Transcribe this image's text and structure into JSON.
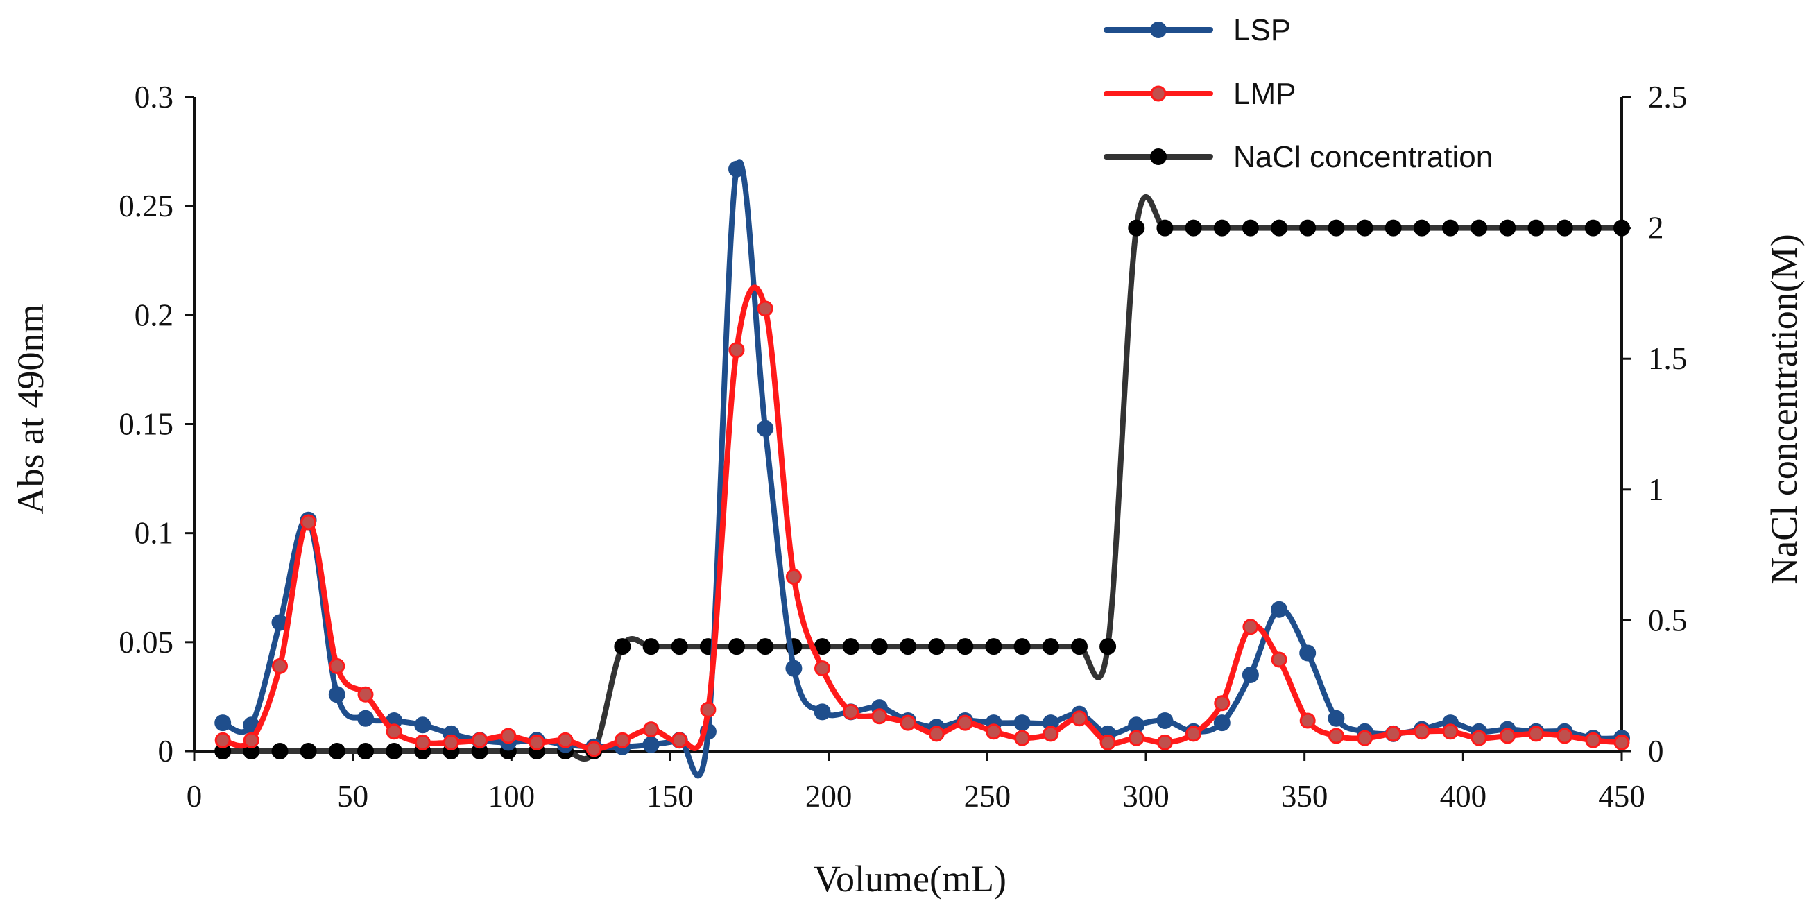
{
  "chart_data": {
    "type": "line",
    "title": "",
    "xlabel": "Volume(mL)",
    "ylabel": "Abs at 490nm",
    "y2label": "NaCl concentration(M)",
    "xlim": [
      0,
      450
    ],
    "ylim": [
      0,
      0.3
    ],
    "y2lim": [
      0,
      2.5
    ],
    "xticks": [
      "0",
      "50",
      "100",
      "150",
      "200",
      "250",
      "300",
      "350",
      "400",
      "450"
    ],
    "yticks": [
      "0",
      "0.05",
      "0.1",
      "0.15",
      "0.2",
      "0.25",
      "0.3"
    ],
    "y2ticks": [
      "0",
      "0.5",
      "1",
      "1.5",
      "2",
      "2.5"
    ],
    "grid": false,
    "legend_position": "top-right",
    "series": [
      {
        "name": "LSP",
        "axis": "left",
        "color": "#1f4e8c",
        "marker_color": "#1f4e8c",
        "points": [
          [
            9,
            0.013
          ],
          [
            18,
            0.012
          ],
          [
            27,
            0.059
          ],
          [
            36,
            0.106
          ],
          [
            45,
            0.026
          ],
          [
            54,
            0.015
          ],
          [
            63,
            0.014
          ],
          [
            72,
            0.012
          ],
          [
            81,
            0.008
          ],
          [
            90,
            0.005
          ],
          [
            99,
            0.004
          ],
          [
            108,
            0.005
          ],
          [
            117,
            0.003
          ],
          [
            126,
            0.002
          ],
          [
            135,
            0.002
          ],
          [
            144,
            0.003
          ],
          [
            153,
            0.005
          ],
          [
            162,
            0.009
          ],
          [
            171,
            0.267
          ],
          [
            180,
            0.148
          ],
          [
            189,
            0.038
          ],
          [
            198,
            0.018
          ],
          [
            207,
            0.018
          ],
          [
            216,
            0.02
          ],
          [
            225,
            0.014
          ],
          [
            234,
            0.011
          ],
          [
            243,
            0.014
          ],
          [
            252,
            0.013
          ],
          [
            261,
            0.013
          ],
          [
            270,
            0.013
          ],
          [
            279,
            0.017
          ],
          [
            288,
            0.008
          ],
          [
            297,
            0.012
          ],
          [
            306,
            0.014
          ],
          [
            315,
            0.009
          ],
          [
            324,
            0.013
          ],
          [
            333,
            0.035
          ],
          [
            342,
            0.065
          ],
          [
            351,
            0.045
          ],
          [
            360,
            0.015
          ],
          [
            369,
            0.009
          ],
          [
            378,
            0.008
          ],
          [
            387,
            0.01
          ],
          [
            396,
            0.013
          ],
          [
            405,
            0.009
          ],
          [
            414,
            0.01
          ],
          [
            423,
            0.009
          ],
          [
            432,
            0.009
          ],
          [
            441,
            0.006
          ],
          [
            450,
            0.006
          ]
        ]
      },
      {
        "name": "LMP",
        "axis": "left",
        "color": "#ff1a1a",
        "marker_color": "#c0504d",
        "points": [
          [
            9,
            0.005
          ],
          [
            18,
            0.005
          ],
          [
            27,
            0.039
          ],
          [
            36,
            0.105
          ],
          [
            45,
            0.039
          ],
          [
            54,
            0.026
          ],
          [
            63,
            0.009
          ],
          [
            72,
            0.004
          ],
          [
            81,
            0.004
          ],
          [
            90,
            0.005
          ],
          [
            99,
            0.007
          ],
          [
            108,
            0.004
          ],
          [
            117,
            0.005
          ],
          [
            126,
            0.001
          ],
          [
            135,
            0.005
          ],
          [
            144,
            0.01
          ],
          [
            153,
            0.005
          ],
          [
            162,
            0.019
          ],
          [
            171,
            0.184
          ],
          [
            180,
            0.203
          ],
          [
            189,
            0.08
          ],
          [
            198,
            0.038
          ],
          [
            207,
            0.018
          ],
          [
            216,
            0.016
          ],
          [
            225,
            0.013
          ],
          [
            234,
            0.008
          ],
          [
            243,
            0.013
          ],
          [
            252,
            0.009
          ],
          [
            261,
            0.006
          ],
          [
            270,
            0.008
          ],
          [
            279,
            0.015
          ],
          [
            288,
            0.004
          ],
          [
            297,
            0.006
          ],
          [
            306,
            0.004
          ],
          [
            315,
            0.008
          ],
          [
            324,
            0.022
          ],
          [
            333,
            0.057
          ],
          [
            342,
            0.042
          ],
          [
            351,
            0.014
          ],
          [
            360,
            0.007
          ],
          [
            369,
            0.006
          ],
          [
            378,
            0.008
          ],
          [
            387,
            0.009
          ],
          [
            396,
            0.009
          ],
          [
            405,
            0.006
          ],
          [
            414,
            0.007
          ],
          [
            423,
            0.008
          ],
          [
            432,
            0.007
          ],
          [
            441,
            0.005
          ],
          [
            450,
            0.004
          ]
        ]
      },
      {
        "name": "NaCl concentration",
        "axis": "right",
        "color": "#333333",
        "marker_color": "#000000",
        "points": [
          [
            9,
            0
          ],
          [
            18,
            0
          ],
          [
            27,
            0
          ],
          [
            36,
            0
          ],
          [
            45,
            0
          ],
          [
            54,
            0
          ],
          [
            63,
            0
          ],
          [
            72,
            0
          ],
          [
            81,
            0
          ],
          [
            90,
            0
          ],
          [
            99,
            0
          ],
          [
            108,
            0
          ],
          [
            117,
            0
          ],
          [
            126,
            0
          ],
          [
            135,
            0.4
          ],
          [
            144,
            0.4
          ],
          [
            153,
            0.4
          ],
          [
            162,
            0.4
          ],
          [
            171,
            0.4
          ],
          [
            180,
            0.4
          ],
          [
            189,
            0.4
          ],
          [
            198,
            0.4
          ],
          [
            207,
            0.4
          ],
          [
            216,
            0.4
          ],
          [
            225,
            0.4
          ],
          [
            234,
            0.4
          ],
          [
            243,
            0.4
          ],
          [
            252,
            0.4
          ],
          [
            261,
            0.4
          ],
          [
            270,
            0.4
          ],
          [
            279,
            0.4
          ],
          [
            288,
            0.4
          ],
          [
            297,
            2
          ],
          [
            306,
            2
          ],
          [
            315,
            2
          ],
          [
            324,
            2
          ],
          [
            333,
            2
          ],
          [
            342,
            2
          ],
          [
            351,
            2
          ],
          [
            360,
            2
          ],
          [
            369,
            2
          ],
          [
            378,
            2
          ],
          [
            387,
            2
          ],
          [
            396,
            2
          ],
          [
            405,
            2
          ],
          [
            414,
            2
          ],
          [
            423,
            2
          ],
          [
            432,
            2
          ],
          [
            441,
            2
          ],
          [
            450,
            2
          ]
        ]
      }
    ]
  }
}
